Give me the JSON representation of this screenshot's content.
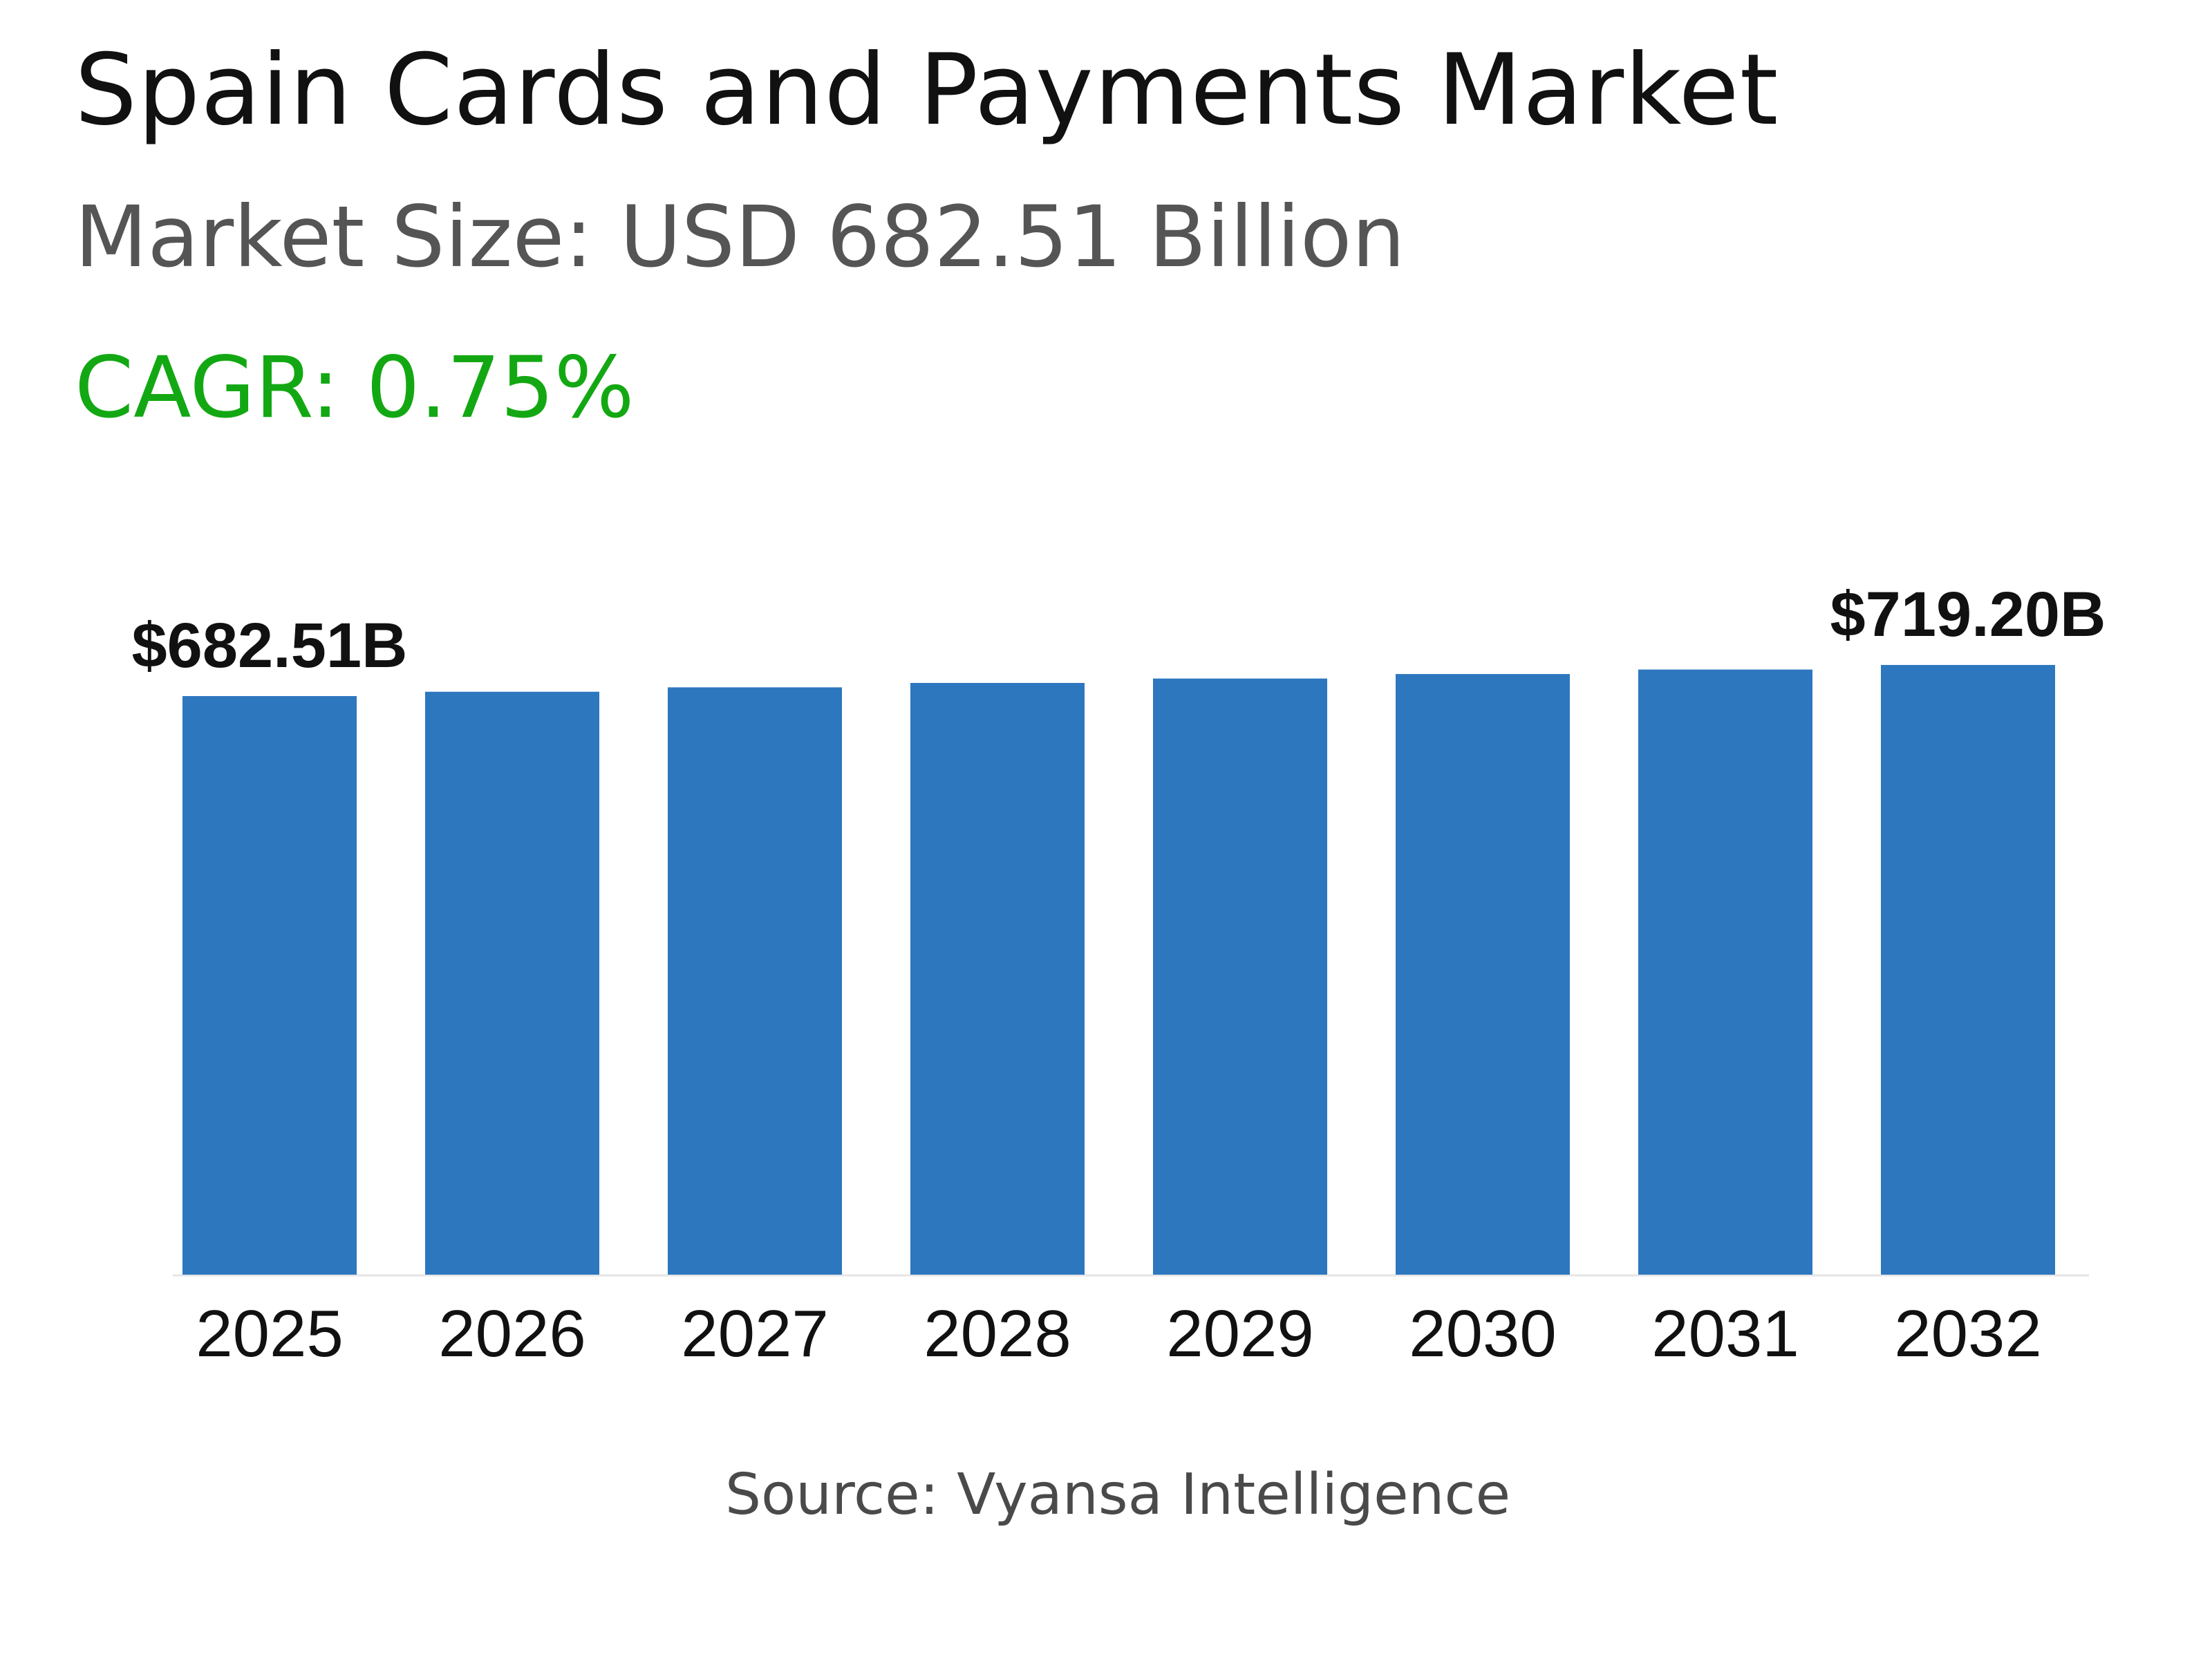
{
  "header": {
    "title": "Spain Cards and Payments Market",
    "market_size": "Market Size: USD 682.51 Billion",
    "cagr": "CAGR: 0.75%"
  },
  "source": "Source: Vyansa Intelligence",
  "colors": {
    "bar": "#2d77bf",
    "cagr": "#13a813",
    "title": "#111111",
    "subtitle": "#555555"
  },
  "chart_data": {
    "type": "bar",
    "title": "Spain Cards and Payments Market",
    "xlabel": "",
    "ylabel": "",
    "unit": "USD Billion",
    "categories": [
      "2025",
      "2026",
      "2027",
      "2028",
      "2029",
      "2030",
      "2031",
      "2032"
    ],
    "values": [
      682.51,
      687.6,
      692.8,
      698.0,
      703.2,
      708.5,
      713.8,
      719.2
    ],
    "data_labels": {
      "0": "$682.51B",
      "7": "$719.20B"
    },
    "ylim": [
      0,
      719.2
    ],
    "grid": false,
    "y_axis_visible": false
  }
}
